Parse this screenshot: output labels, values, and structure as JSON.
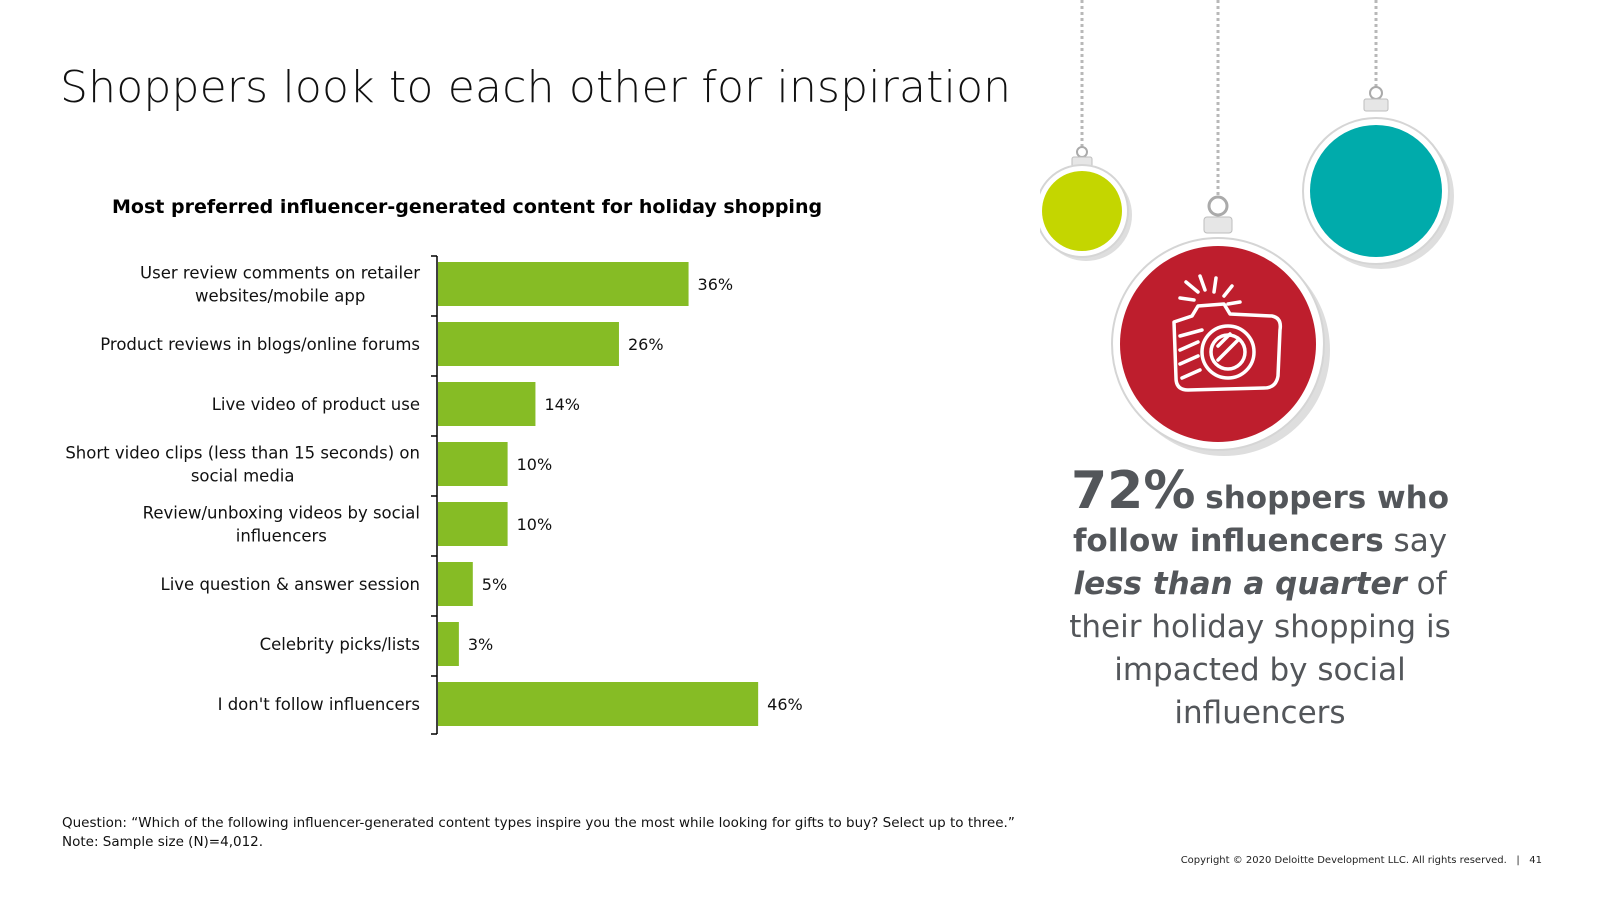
{
  "slide": {
    "title": "Shoppers look to each other for inspiration",
    "footnote_question": "Question: “Which of the following influencer-generated content types inspire you the most while looking for gifts to buy? Select up to three.”",
    "footnote_note": "Note: Sample size (N)=4,012.",
    "copyright": "Copyright © 2020 Deloitte Development LLC. All rights reserved.",
    "separator": "|",
    "page_number": "41"
  },
  "callout": {
    "stat": "72%",
    "bold_part": "shoppers who follow influencers",
    "say": "say",
    "emphasis": "less than a quarter",
    "of": "of",
    "rest": "their holiday shopping is impacted by social influencers"
  },
  "ornaments": {
    "icon": "camera-icon",
    "colors": {
      "green": "#c4d600",
      "red": "#be1e2d",
      "teal": "#00abab"
    }
  },
  "chart_data": {
    "type": "bar",
    "orientation": "horizontal",
    "title": "Most preferred influencer-generated content for holiday shopping",
    "categories": [
      "User review comments on retailer websites/mobile app",
      "Product reviews in blogs/online forums",
      "Live video of product use",
      "Short video clips (less than 15 seconds) on social media",
      "Review/unboxing videos by social influencers",
      "Live question & answer session",
      "Celebrity picks/lists",
      "I don't follow influencers"
    ],
    "category_lines": [
      [
        "User review comments on retailer",
        "websites/mobile app"
      ],
      [
        "Product reviews in blogs/online forums"
      ],
      [
        "Live video of product use"
      ],
      [
        "Short video clips (less than 15 seconds) on",
        "social media"
      ],
      [
        "Review/unboxing videos by social",
        "influencers"
      ],
      [
        "Live question & answer session"
      ],
      [
        "Celebrity picks/lists"
      ],
      [
        "I don't follow influencers"
      ]
    ],
    "values": [
      36,
      26,
      14,
      10,
      10,
      5,
      3,
      46
    ],
    "value_labels": [
      "36%",
      "26%",
      "14%",
      "10%",
      "10%",
      "5%",
      "3%",
      "46%"
    ],
    "unit": "%",
    "xlim": [
      0,
      50
    ],
    "bar_color": "#86bc25",
    "grid": false,
    "legend": "none"
  }
}
